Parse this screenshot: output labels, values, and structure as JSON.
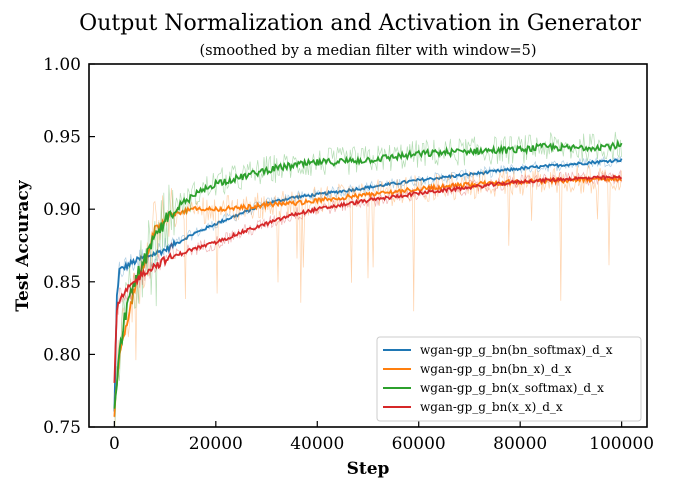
{
  "chart_data": {
    "type": "line",
    "title": "Output Normalization and Activation in Generator",
    "subtitle": "(smoothed by a median filter with window=5)",
    "xlabel": "Step",
    "ylabel": "Test Accuracy",
    "xlim": [
      -5000,
      105000
    ],
    "ylim": [
      0.75,
      1.0
    ],
    "xticks": [
      0,
      20000,
      40000,
      60000,
      80000,
      100000
    ],
    "yticks": [
      0.75,
      0.8,
      0.85,
      0.9,
      0.95,
      1.0
    ],
    "xtick_labels": [
      "0",
      "20000",
      "40000",
      "60000",
      "80000",
      "100000"
    ],
    "ytick_labels": [
      "0.75",
      "0.80",
      "0.85",
      "0.90",
      "0.95",
      "1.00"
    ],
    "grid": false,
    "legend_position": "lower-right",
    "series": [
      {
        "name": "wgan-gp_g_bn(bn_softmax)_d_x",
        "color": "#1f77b4",
        "x": [
          0,
          500,
          1000,
          2000,
          4000,
          6000,
          10000,
          15000,
          20000,
          25000,
          30000,
          35000,
          40000,
          50000,
          60000,
          70000,
          80000,
          90000,
          100000
        ],
        "y": [
          0.76,
          0.84,
          0.858,
          0.86,
          0.864,
          0.867,
          0.872,
          0.882,
          0.89,
          0.897,
          0.904,
          0.908,
          0.91,
          0.915,
          0.92,
          0.924,
          0.928,
          0.931,
          0.934
        ]
      },
      {
        "name": "wgan-gp_g_bn(bn_x)_d_x",
        "color": "#ff7f0e",
        "x": [
          0,
          1000,
          2000,
          3000,
          4000,
          6000,
          8000,
          10000,
          12000,
          15000,
          20000,
          25000,
          30000,
          35000,
          40000,
          50000,
          60000,
          70000,
          80000,
          90000,
          100000
        ],
        "y": [
          0.76,
          0.8,
          0.815,
          0.83,
          0.845,
          0.865,
          0.885,
          0.892,
          0.897,
          0.9,
          0.9,
          0.901,
          0.903,
          0.904,
          0.906,
          0.91,
          0.914,
          0.917,
          0.919,
          0.92,
          0.921
        ]
      },
      {
        "name": "wgan-gp_g_bn(x_softmax)_d_x",
        "color": "#2ca02c",
        "x": [
          0,
          1000,
          2000,
          3000,
          4000,
          6000,
          8000,
          10000,
          13000,
          16000,
          20000,
          25000,
          30000,
          35000,
          40000,
          50000,
          60000,
          70000,
          80000,
          85000,
          90000,
          100000
        ],
        "y": [
          0.76,
          0.8,
          0.825,
          0.84,
          0.85,
          0.865,
          0.88,
          0.893,
          0.903,
          0.91,
          0.918,
          0.922,
          0.927,
          0.93,
          0.932,
          0.934,
          0.938,
          0.94,
          0.941,
          0.943,
          0.942,
          0.944
        ]
      },
      {
        "name": "wgan-gp_g_bn(x_x)_d_x",
        "color": "#d62728",
        "x": [
          0,
          500,
          1000,
          2000,
          4000,
          6000,
          10000,
          15000,
          20000,
          25000,
          30000,
          35000,
          40000,
          50000,
          60000,
          70000,
          80000,
          90000,
          100000
        ],
        "y": [
          0.78,
          0.83,
          0.836,
          0.842,
          0.85,
          0.857,
          0.865,
          0.872,
          0.877,
          0.884,
          0.89,
          0.896,
          0.9,
          0.906,
          0.911,
          0.915,
          0.919,
          0.921,
          0.922
        ]
      }
    ]
  }
}
